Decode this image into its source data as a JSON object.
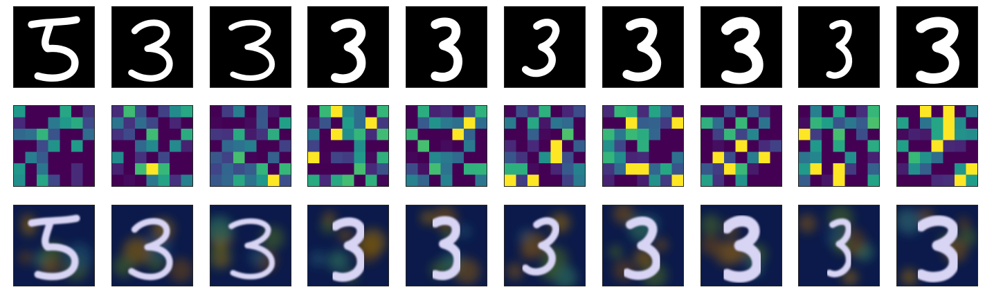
{
  "figure": {
    "rows": [
      {
        "kind": "input-digit",
        "colormap": "gray"
      },
      {
        "kind": "heatmap",
        "colormap": "viridis"
      },
      {
        "kind": "overlay",
        "colormap": "jet"
      }
    ],
    "columns": 10,
    "digit_label": "3",
    "colors": {
      "background": "#000000",
      "digit": "#ffffff",
      "heatmap_low": "#440154",
      "heatmap_high": "#fde725",
      "overlay_base": "#0b1a4a"
    }
  }
}
